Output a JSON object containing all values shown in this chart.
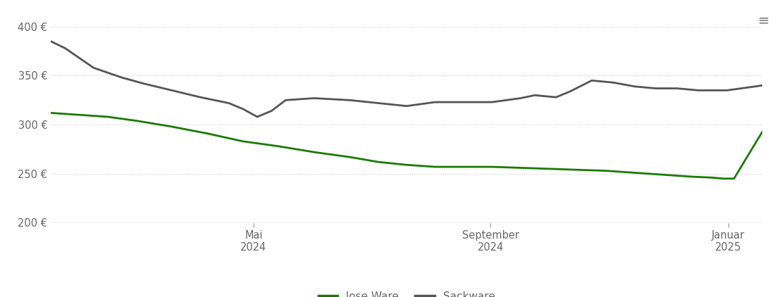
{
  "background_color": "#ffffff",
  "ylim": [
    200,
    415
  ],
  "yticks": [
    200,
    250,
    300,
    350,
    400
  ],
  "ytick_labels": [
    "200 €",
    "250 €",
    "300 €",
    "350 €",
    "400 €"
  ],
  "legend_labels": [
    "lose Ware",
    "Sackware"
  ],
  "legend_colors": [
    "#1a7a00",
    "#555555"
  ],
  "line_lose_color": "#1a7a00",
  "line_sack_color": "#555555",
  "line_width": 2.0,
  "grid_color": "#cccccc",
  "axis_color": "#999999",
  "tick_color": "#666666",
  "xtick_positions": [
    0.285,
    0.618,
    0.952
  ],
  "xtick_labels": [
    "Mai\n2024",
    "September\n2024",
    "Januar\n2025"
  ],
  "lose_x": [
    0.0,
    0.04,
    0.08,
    0.12,
    0.17,
    0.22,
    0.27,
    0.32,
    0.37,
    0.42,
    0.46,
    0.5,
    0.54,
    0.58,
    0.62,
    0.66,
    0.7,
    0.74,
    0.78,
    0.82,
    0.86,
    0.9,
    0.93,
    0.945,
    0.96,
    1.0
  ],
  "lose_y": [
    312,
    310,
    308,
    304,
    298,
    291,
    283,
    278,
    272,
    267,
    262,
    259,
    257,
    257,
    257,
    256,
    255,
    254,
    253,
    251,
    249,
    247,
    246,
    245,
    245,
    293
  ],
  "sack_x": [
    0.0,
    0.02,
    0.04,
    0.06,
    0.08,
    0.1,
    0.13,
    0.17,
    0.21,
    0.25,
    0.27,
    0.285,
    0.29,
    0.31,
    0.33,
    0.37,
    0.42,
    0.46,
    0.5,
    0.54,
    0.58,
    0.62,
    0.64,
    0.66,
    0.68,
    0.71,
    0.73,
    0.76,
    0.79,
    0.82,
    0.85,
    0.88,
    0.91,
    0.95,
    1.0
  ],
  "sack_y": [
    385,
    378,
    368,
    358,
    353,
    348,
    342,
    335,
    328,
    322,
    316,
    310,
    308,
    314,
    325,
    327,
    325,
    322,
    319,
    323,
    323,
    323,
    325,
    327,
    330,
    328,
    334,
    345,
    343,
    339,
    337,
    337,
    335,
    335,
    340
  ]
}
